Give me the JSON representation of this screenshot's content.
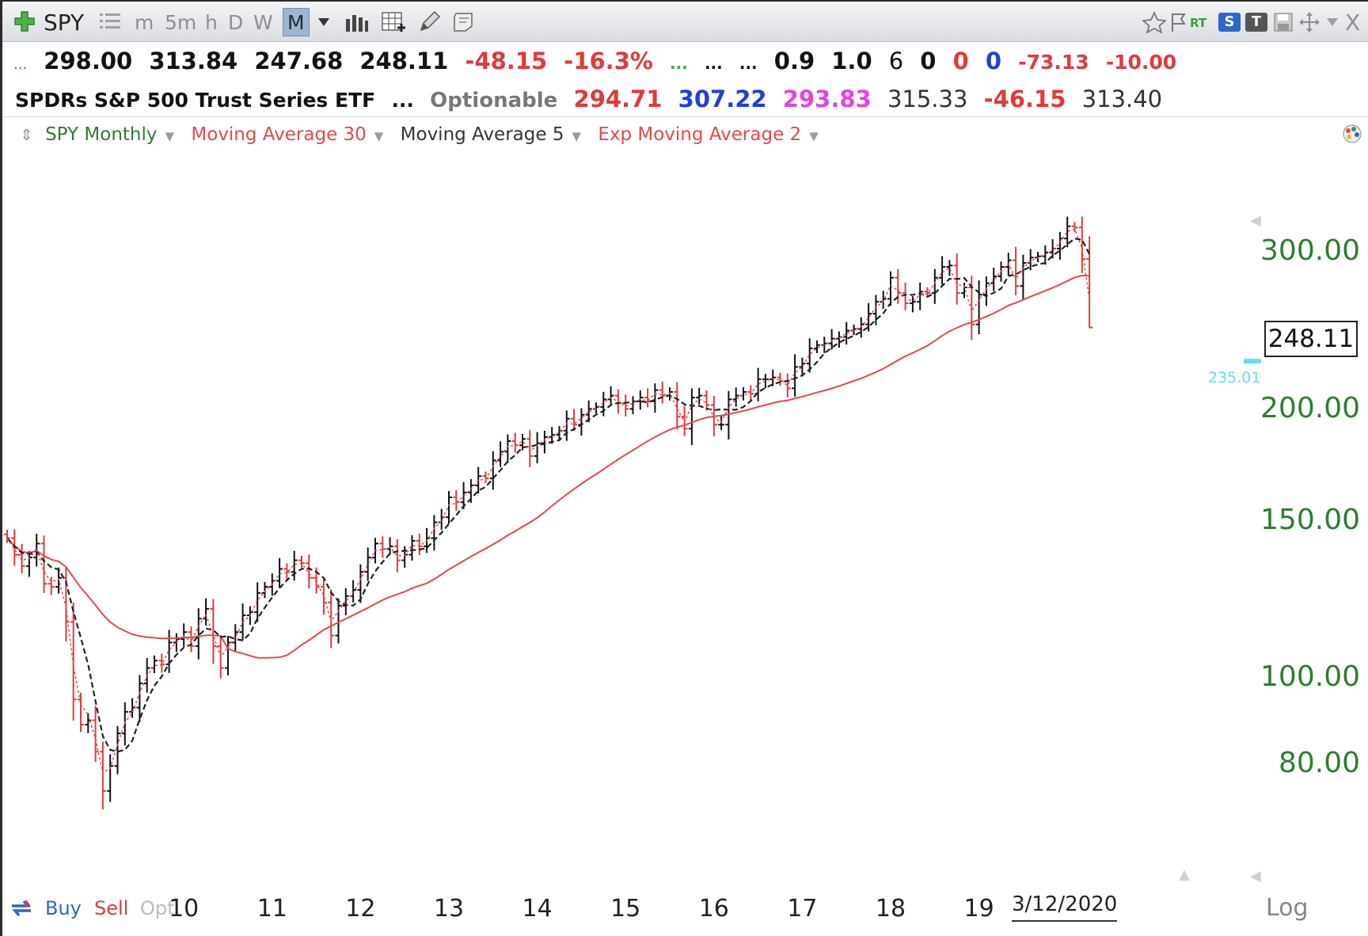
{
  "toolbar": {
    "symbol": "SPY",
    "timeframes": [
      "m",
      "5m",
      "h",
      "D",
      "W",
      "M"
    ],
    "active_timeframe": "M",
    "close_label": "X",
    "right_badges": [
      "RT",
      "S",
      "T"
    ]
  },
  "quote_row": {
    "lead": "...",
    "open": "298.00",
    "high": "313.84",
    "low": "247.68",
    "last": "248.11",
    "change": "-48.15",
    "change_pct": "-16.3%",
    "green_dots": "...",
    "dots1": "...",
    "dots2": "...",
    "v1": "0.9",
    "v2": "1.0",
    "v3": "6",
    "v4": "0",
    "v5": "0",
    "v6": "0",
    "v7": "-73.13",
    "v8": "-10.00"
  },
  "info_row": {
    "name": "SPDRs S&P 500 Trust Series ETF",
    "dots": "...",
    "optionable": "Optionable",
    "p1": "294.71",
    "p2": "307.22",
    "p3": "293.83",
    "p4": "315.33",
    "p5": "-46.15",
    "p6": "313.40"
  },
  "legend": {
    "symbol": "SPY Monthly",
    "ma30": "Moving Average 30",
    "ma5": "Moving Average 5",
    "ema2": "Exp Moving Average 2"
  },
  "colors": {
    "up_bar": "#111111",
    "down_bar": "#e03a3a",
    "ma30": "#e84848",
    "ma5": "#222222",
    "ema2": "#e85050",
    "axis_label": "#2f7d2f",
    "cyan": "#62e0ea"
  },
  "price_label": "248.11",
  "alert_label": "235.01",
  "bottom": {
    "buy": "Buy",
    "sell": "Sell",
    "opt": "Opt",
    "scale": "Log"
  },
  "chart_data": {
    "type": "ohlc",
    "scale": "log",
    "ylim": [
      62,
      345
    ],
    "y_ticks": [
      {
        "value": 300,
        "label": "300.00"
      },
      {
        "value": 200,
        "label": "200.00"
      },
      {
        "value": 150,
        "label": "150.00"
      },
      {
        "value": 100,
        "label": "100.00"
      },
      {
        "value": 80,
        "label": "80.00"
      }
    ],
    "x_ticks": [
      {
        "year": 2010,
        "label": "10"
      },
      {
        "year": 2011,
        "label": "11"
      },
      {
        "year": 2012,
        "label": "12"
      },
      {
        "year": 2013,
        "label": "13"
      },
      {
        "year": 2014,
        "label": "14"
      },
      {
        "year": 2015,
        "label": "15"
      },
      {
        "year": 2016,
        "label": "16"
      },
      {
        "year": 2017,
        "label": "17"
      },
      {
        "year": 2018,
        "label": "18"
      },
      {
        "year": 2019,
        "label": "19"
      }
    ],
    "last_date_label": "3/12/2020",
    "first_month": "2008-01",
    "closes": [
      144,
      138,
      134,
      137,
      142,
      128,
      127,
      130,
      116,
      95,
      89,
      90,
      83,
      75,
      80,
      87,
      92,
      93,
      99,
      103,
      105,
      104,
      110,
      111,
      113,
      109,
      117,
      120,
      109,
      103,
      110,
      113,
      118,
      119,
      125,
      127,
      129,
      133,
      132,
      136,
      135,
      130,
      127,
      122,
      112,
      121,
      124,
      126,
      132,
      137,
      142,
      140,
      141,
      136,
      138,
      143,
      141,
      144,
      150,
      152,
      160,
      158,
      162,
      165,
      169,
      168,
      176,
      180,
      185,
      183,
      186,
      178,
      184,
      187,
      188,
      190,
      196,
      193,
      198,
      201,
      202,
      206,
      208,
      204,
      201,
      205,
      207,
      205,
      211,
      208,
      210,
      197,
      191,
      207,
      208,
      203,
      193,
      193,
      206,
      208,
      210,
      209,
      217,
      217,
      218,
      216,
      212,
      224,
      226,
      235,
      237,
      238,
      241,
      242,
      246,
      247,
      250,
      257,
      265,
      267,
      282,
      271,
      264,
      265,
      272,
      271,
      282,
      290,
      291,
      271,
      275,
      250,
      270,
      278,
      283,
      290,
      295,
      276,
      293,
      297,
      298,
      301,
      304,
      312,
      322,
      321,
      296,
      248
    ],
    "series": [
      {
        "name": "Moving Average 30"
      },
      {
        "name": "Moving Average 5"
      },
      {
        "name": "Exp Moving Average 2"
      }
    ]
  }
}
